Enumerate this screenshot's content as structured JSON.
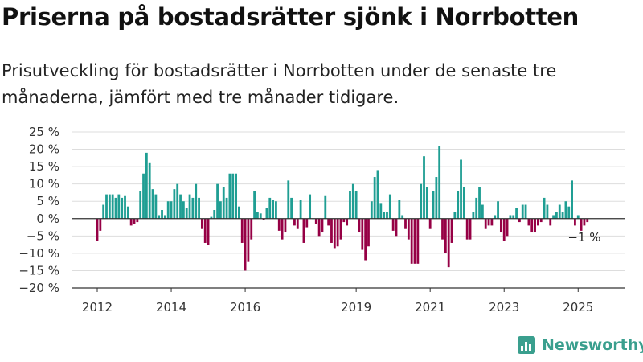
{
  "title": "Priserna på bostadsrätter sjönk i Norrbotten",
  "subtitle": "Prisutveckling för bostadsrätter i Norrbotten under de senaste tre månaderna, jämfört med tre månader tidigare.",
  "brand": {
    "name": "Newsworthy",
    "icon": "newsworthy-logo-icon"
  },
  "colors": {
    "positive": "#1f9e93",
    "negative": "#960045",
    "grid": "#dddddd",
    "axis": "#333333"
  },
  "chart_data": {
    "type": "bar",
    "ylim": [
      -20,
      25
    ],
    "yticks": [
      25,
      20,
      15,
      10,
      5,
      0,
      -5,
      -10,
      -15,
      -20
    ],
    "ytick_labels": [
      "25 %",
      "20 %",
      "15 %",
      "10 %",
      "5 %",
      "0 %",
      "−5 %",
      "−10 %",
      "−15 %",
      "−20 %"
    ],
    "xticks": [
      "2012",
      "2014",
      "2016",
      "2019",
      "2021",
      "2023",
      "2025"
    ],
    "xtick_month_index": [
      0,
      24,
      48,
      84,
      108,
      132,
      156
    ],
    "start_month": "2012-01",
    "grid": true,
    "annotation": {
      "text": "−1 %",
      "month_index": 158,
      "value": -1
    },
    "values": [
      -6.5,
      -3.5,
      4,
      7,
      7,
      7,
      6,
      7,
      6,
      6.5,
      3.5,
      -2,
      -1.5,
      -1,
      8,
      13,
      19,
      16,
      8.5,
      7,
      1,
      2.5,
      1,
      5,
      5,
      8.5,
      10,
      7,
      5,
      3,
      7,
      6,
      10,
      6,
      -3,
      -7,
      -7.5,
      0.5,
      2.5,
      10,
      5,
      9,
      6,
      13,
      13,
      13,
      3.5,
      -7,
      -15,
      -12.5,
      -6,
      8,
      2,
      1.5,
      -0.5,
      3,
      6,
      5.5,
      5,
      -3.5,
      -6,
      -4,
      11,
      6,
      -2,
      -3,
      5.5,
      -7,
      -2.5,
      7,
      0,
      -1.5,
      -5,
      -4,
      6.5,
      -2,
      -7,
      -8.5,
      -8,
      -6,
      -1,
      -2,
      8,
      10,
      8,
      -4,
      -9,
      -12,
      -8,
      5,
      12,
      14,
      4.5,
      2,
      2,
      7,
      -3.5,
      -5,
      5.5,
      1,
      -3,
      -6,
      -13,
      -13,
      -13,
      10,
      18,
      9,
      -3,
      8,
      12,
      21,
      -6,
      -10,
      -14,
      -7,
      2,
      8,
      17,
      9,
      -6,
      -6,
      2,
      6,
      9,
      4,
      -3,
      -2,
      -2,
      1,
      5,
      -4,
      -6.5,
      -5,
      1,
      1,
      3,
      -1,
      4,
      4,
      -2,
      -4,
      -4,
      -2,
      -1,
      6,
      4,
      -2,
      1,
      2,
      4,
      2,
      5,
      3.5,
      11,
      -2,
      1,
      -3.5,
      -2,
      -1
    ]
  }
}
